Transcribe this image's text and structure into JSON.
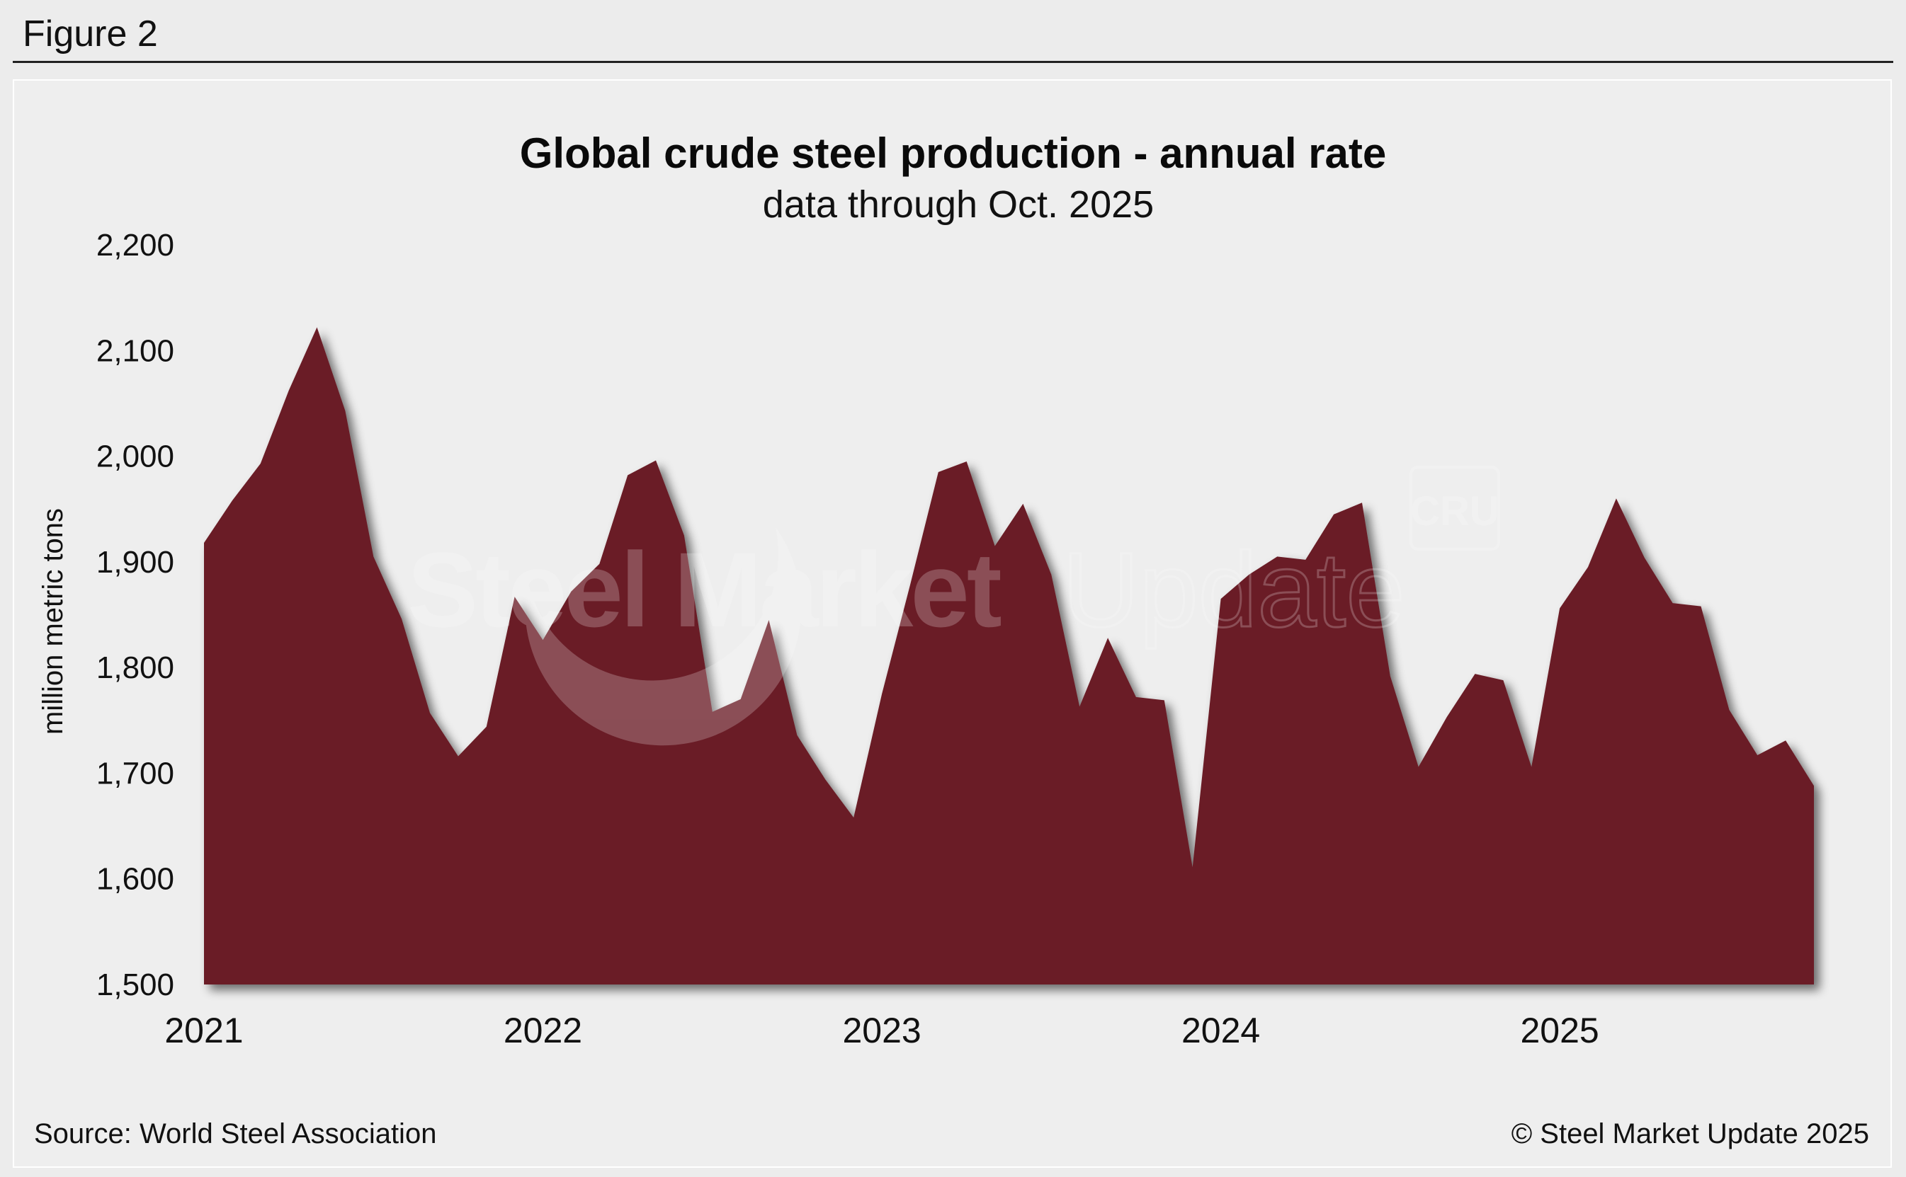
{
  "figure_label": "Figure 2",
  "footer": {
    "source": "Source: World Steel Association",
    "copyright": "© Steel Market Update 2025"
  },
  "watermark": {
    "brand_left": "Steel Market",
    "brand_right": "Update",
    "logo": "CRU"
  },
  "colors": {
    "area_fill": "#6b1f27",
    "background": "#eeeeee"
  },
  "chart_data": {
    "type": "area",
    "title": "Global crude steel production - annual rate",
    "subtitle": "data through Oct. 2025",
    "ylabel": "million metric tons",
    "xlabel": "",
    "ylim": [
      1500,
      2200
    ],
    "yticks": [
      1500,
      1600,
      1700,
      1800,
      1900,
      2000,
      2100,
      2200
    ],
    "ytick_labels": [
      "1,500",
      "1,600",
      "1,700",
      "1,800",
      "1,900",
      "2,000",
      "2,100",
      "2,200"
    ],
    "xticks": [
      "2021",
      "2022",
      "2023",
      "2024",
      "2025"
    ],
    "xlim": [
      "2021-01",
      "2025-10"
    ],
    "grid": false,
    "legend": "none",
    "series": [
      {
        "x": [
          "2021-01",
          "2021-02",
          "2021-03",
          "2021-04",
          "2021-05",
          "2021-06",
          "2021-07",
          "2021-08",
          "2021-09",
          "2021-10",
          "2021-11",
          "2021-12",
          "2022-01",
          "2022-02",
          "2022-03",
          "2022-04",
          "2022-05",
          "2022-06",
          "2022-07",
          "2022-08",
          "2022-09",
          "2022-10",
          "2022-11",
          "2022-12",
          "2023-01",
          "2023-02",
          "2023-03",
          "2023-04",
          "2023-05",
          "2023-06",
          "2023-07",
          "2023-08",
          "2023-09",
          "2023-10",
          "2023-11",
          "2023-12",
          "2024-01",
          "2024-02",
          "2024-03",
          "2024-04",
          "2024-05",
          "2024-06",
          "2024-07",
          "2024-08",
          "2024-09",
          "2024-10",
          "2024-11",
          "2024-12",
          "2025-01",
          "2025-02",
          "2025-03",
          "2025-04",
          "2025-05",
          "2025-06",
          "2025-07",
          "2025-08",
          "2025-09",
          "2025-10"
        ],
        "values": [
          1918,
          1958,
          1993,
          2062,
          2122,
          2043,
          1905,
          1846,
          1757,
          1716,
          1744,
          1867,
          1826,
          1872,
          1898,
          1982,
          1996,
          1925,
          1758,
          1770,
          1845,
          1736,
          1694,
          1658,
          1775,
          1878,
          1985,
          1995,
          1915,
          1955,
          1888,
          1763,
          1828,
          1772,
          1769,
          1611,
          1865,
          1888,
          1905,
          1902,
          1945,
          1956,
          1792,
          1706,
          1753,
          1794,
          1788,
          1706,
          1856,
          1895,
          1960,
          1904,
          1861,
          1858,
          1760,
          1717,
          1731,
          1688
        ]
      }
    ]
  }
}
